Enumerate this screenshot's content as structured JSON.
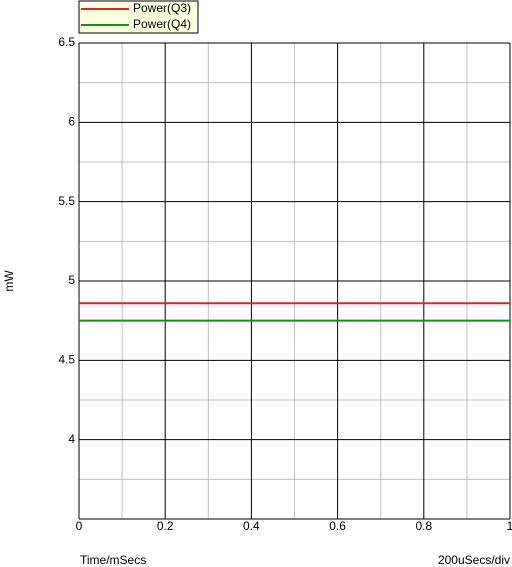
{
  "chart_data": {
    "type": "line",
    "y_label": "mW",
    "x_label": "Time/mSecs",
    "x_scale_note": "200uSecs/div",
    "x": [
      0,
      1
    ],
    "series": [
      {
        "name": "Power(Q3)",
        "color": "#e52222",
        "values": [
          4.86,
          4.86
        ]
      },
      {
        "name": "Power(Q4)",
        "color": "#1b8a1b",
        "values": [
          4.75,
          4.75
        ]
      }
    ],
    "xlim": [
      0,
      1
    ],
    "xticks": [
      0,
      0.2,
      0.4,
      0.6,
      0.8,
      1
    ],
    "ylim": [
      3.5,
      6.5
    ],
    "yticks": [
      4,
      4.5,
      5,
      5.5,
      6,
      6.5
    ],
    "grid": true,
    "legend": "top-left"
  }
}
